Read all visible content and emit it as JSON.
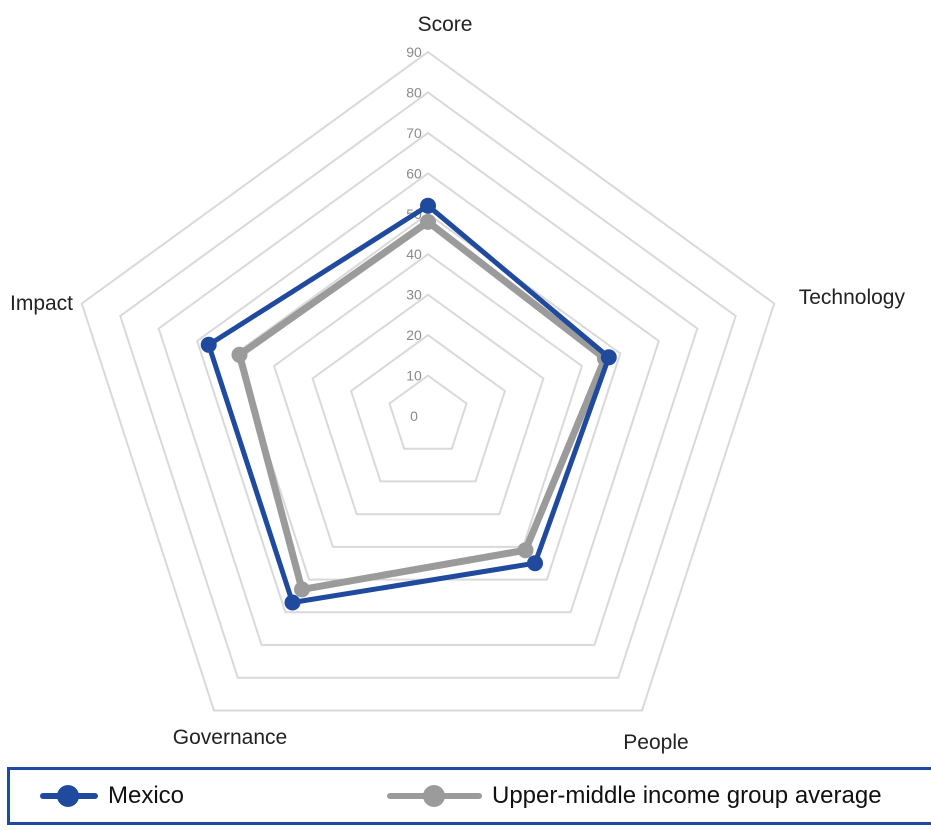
{
  "chart_data": {
    "type": "radar",
    "axes": [
      "Score",
      "Technology",
      "People",
      "Governance",
      "Impact"
    ],
    "rmin": 0,
    "rmax": 90,
    "tick_step": 10,
    "ticks": [
      "0",
      "10",
      "20",
      "30",
      "40",
      "50",
      "60",
      "70",
      "80",
      "90"
    ],
    "grid": true,
    "legend_position": "bottom",
    "series": [
      {
        "name": "Mexico",
        "values": [
          52,
          47,
          45,
          57,
          57
        ],
        "color": "#1f4a9e"
      },
      {
        "name": "Upper-middle income group average",
        "values": [
          48,
          46,
          41,
          53,
          49
        ],
        "color": "#9b9b9b"
      }
    ]
  }
}
